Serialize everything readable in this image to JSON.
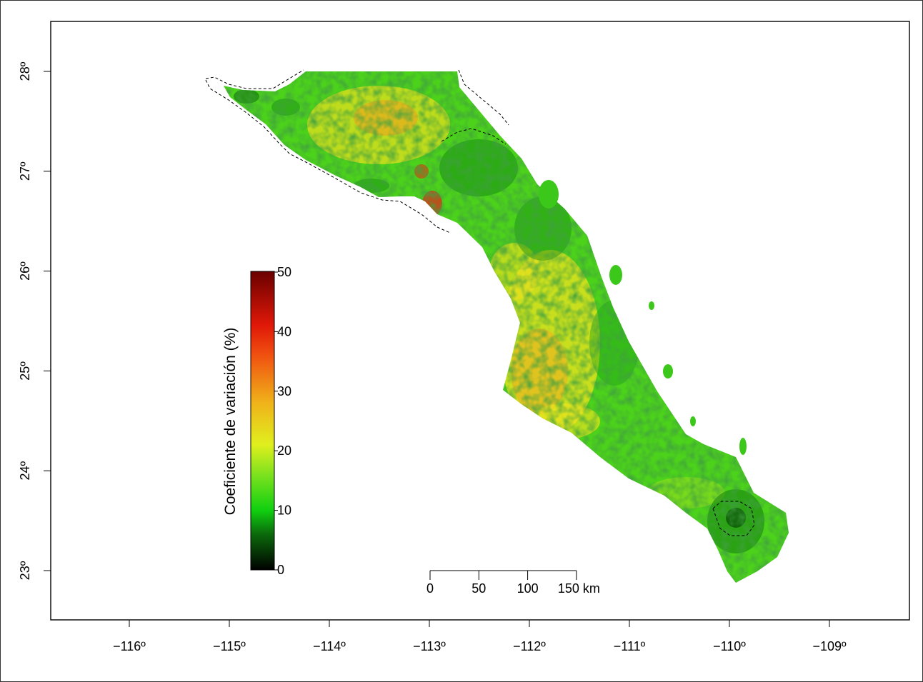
{
  "map": {
    "x_ticks": [
      "−116º",
      "−115º",
      "−114º",
      "−113º",
      "−112º",
      "−111º",
      "−110º",
      "−109º"
    ],
    "y_ticks": [
      "28º",
      "27º",
      "26º",
      "25º",
      "24º",
      "23º"
    ],
    "colors": {
      "deep_green": "#0a5a0a",
      "green": "#22c81e",
      "light_green": "#6ee61e",
      "yellow": "#e8e61a",
      "orange": "#f0a020",
      "red": "#d02a10",
      "dark_red": "#6a0000"
    }
  },
  "legend": {
    "title": "Coeficiente de variación (%)",
    "ticks": [
      "0",
      "10",
      "20",
      "30",
      "40",
      "50"
    ]
  },
  "scale_bar": {
    "labels": [
      "0",
      "50",
      "100",
      "150 km"
    ]
  }
}
